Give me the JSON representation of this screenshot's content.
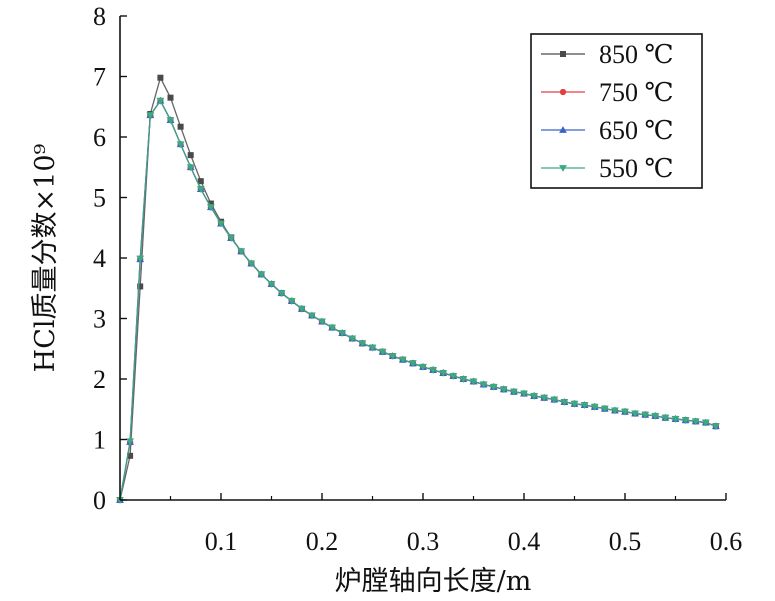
{
  "chart_data": {
    "type": "line",
    "xlabel": "炉膛轴向长度/m",
    "ylabel": "HCl质量分数×10⁹",
    "xlim": [
      0,
      0.6
    ],
    "ylim": [
      0,
      8
    ],
    "xticks": [
      "0.1",
      "0.2",
      "0.3",
      "0.4",
      "0.5",
      "0.6"
    ],
    "yticks": [
      "0",
      "1",
      "2",
      "3",
      "4",
      "5",
      "6",
      "7",
      "8"
    ],
    "grid": false,
    "legend_position": "top-right",
    "x": [
      0,
      0.01,
      0.02,
      0.03,
      0.04,
      0.05,
      0.06,
      0.07,
      0.08,
      0.09,
      0.1,
      0.11,
      0.12,
      0.13,
      0.14,
      0.15,
      0.16,
      0.17,
      0.18,
      0.19,
      0.2,
      0.21,
      0.22,
      0.23,
      0.24,
      0.25,
      0.26,
      0.27,
      0.28,
      0.29,
      0.3,
      0.31,
      0.32,
      0.33,
      0.34,
      0.35,
      0.36,
      0.37,
      0.38,
      0.39,
      0.4,
      0.41,
      0.42,
      0.43,
      0.44,
      0.45,
      0.46,
      0.47,
      0.48,
      0.49,
      0.5,
      0.51,
      0.52,
      0.53,
      0.54,
      0.55,
      0.56,
      0.57,
      0.58,
      0.59
    ],
    "series": [
      {
        "name": "850 ℃",
        "color": "#4a4a4a",
        "marker": "square",
        "values": [
          0,
          0.73,
          3.53,
          6.38,
          6.98,
          6.65,
          6.17,
          5.7,
          5.27,
          4.9,
          4.6,
          4.34,
          4.11,
          3.91,
          3.73,
          3.57,
          3.42,
          3.29,
          3.16,
          3.05,
          2.95,
          2.85,
          2.76,
          2.67,
          2.59,
          2.52,
          2.45,
          2.38,
          2.32,
          2.26,
          2.2,
          2.15,
          2.1,
          2.05,
          2.0,
          1.96,
          1.91,
          1.87,
          1.83,
          1.79,
          1.76,
          1.72,
          1.69,
          1.66,
          1.62,
          1.59,
          1.57,
          1.54,
          1.51,
          1.48,
          1.46,
          1.43,
          1.41,
          1.39,
          1.36,
          1.34,
          1.32,
          1.3,
          1.28,
          1.22
        ]
      },
      {
        "name": "750 ℃",
        "color": "#e04040",
        "marker": "circle",
        "values": [
          0,
          0.95,
          3.98,
          6.36,
          6.6,
          6.28,
          5.88,
          5.5,
          5.14,
          4.84,
          4.57,
          4.33,
          4.11,
          3.91,
          3.73,
          3.57,
          3.42,
          3.29,
          3.16,
          3.05,
          2.95,
          2.85,
          2.76,
          2.67,
          2.59,
          2.52,
          2.45,
          2.38,
          2.32,
          2.26,
          2.2,
          2.15,
          2.1,
          2.05,
          2.0,
          1.96,
          1.91,
          1.87,
          1.83,
          1.79,
          1.76,
          1.72,
          1.69,
          1.66,
          1.62,
          1.59,
          1.57,
          1.54,
          1.51,
          1.48,
          1.46,
          1.43,
          1.41,
          1.39,
          1.36,
          1.34,
          1.32,
          1.3,
          1.28,
          1.22
        ]
      },
      {
        "name": "650 ℃",
        "color": "#3a63c8",
        "marker": "triangle-up",
        "values": [
          0,
          0.96,
          3.98,
          6.36,
          6.6,
          6.28,
          5.88,
          5.5,
          5.14,
          4.84,
          4.57,
          4.33,
          4.11,
          3.91,
          3.73,
          3.57,
          3.42,
          3.29,
          3.16,
          3.05,
          2.95,
          2.85,
          2.76,
          2.67,
          2.59,
          2.52,
          2.45,
          2.38,
          2.32,
          2.26,
          2.2,
          2.15,
          2.1,
          2.05,
          2.0,
          1.96,
          1.91,
          1.87,
          1.83,
          1.79,
          1.76,
          1.72,
          1.69,
          1.66,
          1.62,
          1.59,
          1.57,
          1.54,
          1.51,
          1.48,
          1.46,
          1.43,
          1.41,
          1.39,
          1.36,
          1.34,
          1.32,
          1.3,
          1.28,
          1.22
        ]
      },
      {
        "name": "550 ℃",
        "color": "#3aaa80",
        "marker": "triangle-down",
        "values": [
          0,
          0.97,
          3.99,
          6.36,
          6.6,
          6.28,
          5.88,
          5.5,
          5.14,
          4.84,
          4.57,
          4.33,
          4.11,
          3.91,
          3.73,
          3.57,
          3.42,
          3.29,
          3.16,
          3.05,
          2.95,
          2.85,
          2.76,
          2.67,
          2.59,
          2.52,
          2.45,
          2.38,
          2.32,
          2.26,
          2.2,
          2.15,
          2.1,
          2.05,
          2.0,
          1.96,
          1.91,
          1.87,
          1.83,
          1.79,
          1.76,
          1.72,
          1.69,
          1.66,
          1.62,
          1.59,
          1.57,
          1.54,
          1.51,
          1.48,
          1.46,
          1.43,
          1.41,
          1.39,
          1.36,
          1.34,
          1.32,
          1.3,
          1.28,
          1.22
        ]
      }
    ]
  }
}
